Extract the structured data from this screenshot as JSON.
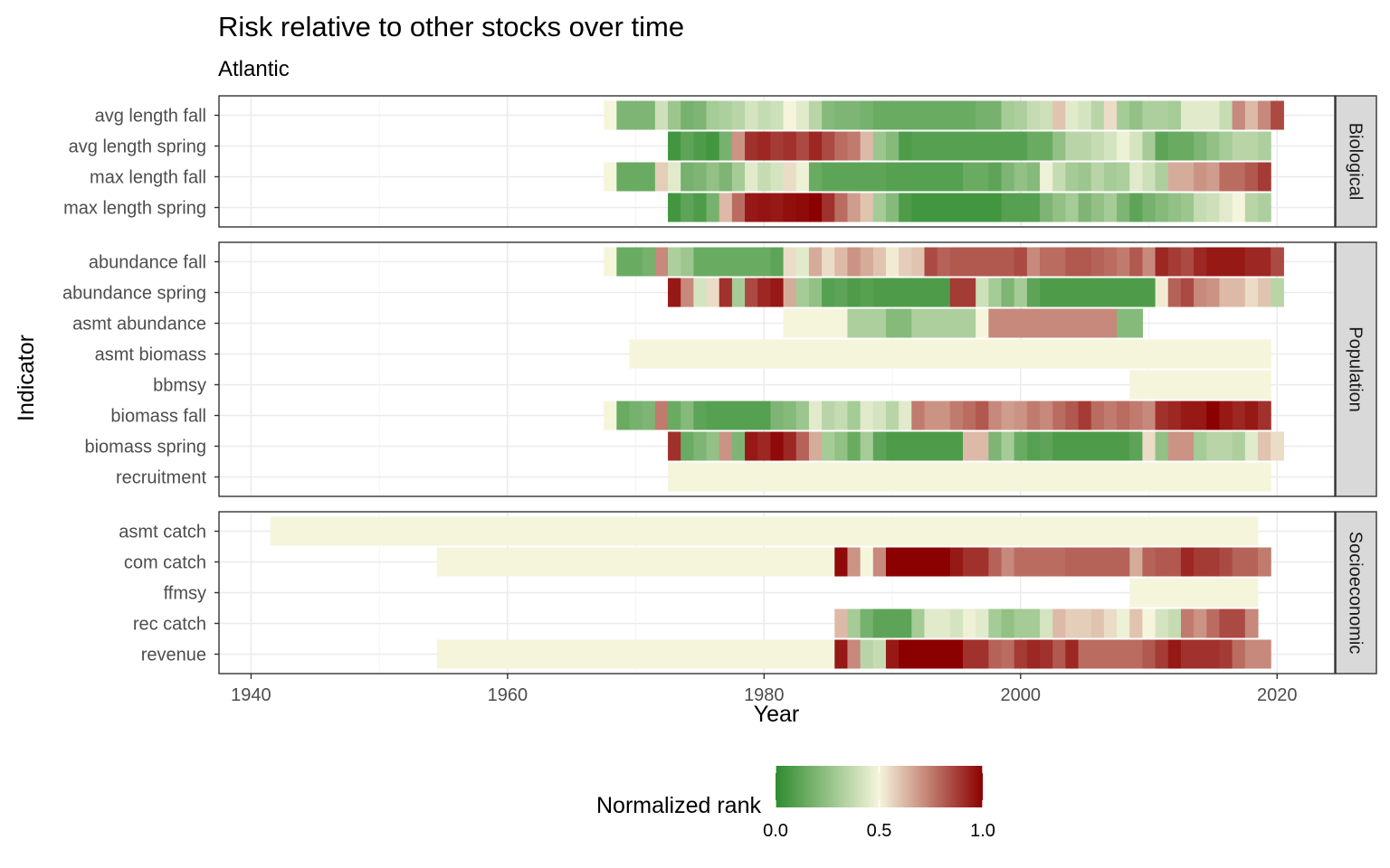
{
  "chart_data": {
    "type": "heatmap",
    "title": "Risk relative to other stocks over time",
    "subtitle": "Atlantic",
    "xlabel": "Year",
    "ylabel": "Indicator",
    "xlim": [
      1937.5,
      2024.5
    ],
    "x_ticks": [
      1940,
      1960,
      1980,
      2000,
      2020
    ],
    "grid": true,
    "legend": {
      "title": "Normalized rank",
      "position": "bottom",
      "ticks": [
        {
          "value": 0,
          "label": "0.0"
        },
        {
          "value": 0.5,
          "label": "0.5"
        },
        {
          "value": 1,
          "label": "1.0"
        }
      ],
      "colors": {
        "low": "#2e8b2e",
        "mid": "#f5f5dc",
        "high": "#8b0000"
      }
    },
    "panels": [
      {
        "name": "Biological",
        "rows": [
          {
            "label": "max length spring",
            "start": 1973,
            "values": [
              0.05,
              0.12,
              0.08,
              0.18,
              0.62,
              0.78,
              0.95,
              0.96,
              0.95,
              0.97,
              0.98,
              1.0,
              0.9,
              0.78,
              0.68,
              0.6,
              0.3,
              0.22,
              0.08,
              0.05,
              0.05,
              0.05,
              0.05,
              0.05,
              0.05,
              0.05,
              0.1,
              0.1,
              0.1,
              0.2,
              0.25,
              0.3,
              0.2,
              0.25,
              0.3,
              0.2,
              0.12,
              0.18,
              0.22,
              0.25,
              0.28,
              0.38,
              0.4,
              0.45,
              0.5,
              0.35,
              0.32
            ]
          },
          {
            "label": "max length fall",
            "start": 1968,
            "values": [
              0.5,
              0.15,
              0.15,
              0.15,
              0.58,
              0.45,
              0.18,
              0.2,
              0.25,
              0.2,
              0.3,
              0.45,
              0.38,
              0.42,
              0.55,
              0.48,
              0.15,
              0.12,
              0.12,
              0.12,
              0.12,
              0.12,
              0.1,
              0.1,
              0.1,
              0.1,
              0.1,
              0.1,
              0.15,
              0.15,
              0.12,
              0.2,
              0.25,
              0.22,
              0.48,
              0.38,
              0.3,
              0.28,
              0.35,
              0.3,
              0.32,
              0.45,
              0.4,
              0.32,
              0.65,
              0.65,
              0.7,
              0.68,
              0.78,
              0.78,
              0.82,
              0.88
            ]
          },
          {
            "label": "avg length spring",
            "start": 1973,
            "values": [
              0.05,
              0.12,
              0.08,
              0.05,
              0.18,
              0.7,
              0.9,
              0.92,
              0.88,
              0.9,
              0.85,
              0.92,
              0.85,
              0.78,
              0.75,
              0.62,
              0.28,
              0.22,
              0.08,
              0.1,
              0.1,
              0.1,
              0.1,
              0.1,
              0.1,
              0.1,
              0.1,
              0.1,
              0.15,
              0.15,
              0.25,
              0.35,
              0.35,
              0.38,
              0.42,
              0.48,
              0.42,
              0.3,
              0.12,
              0.15,
              0.15,
              0.2,
              0.25,
              0.3,
              0.35,
              0.35,
              0.32
            ]
          },
          {
            "label": "avg length fall",
            "start": 1968,
            "values": [
              0.5,
              0.2,
              0.2,
              0.2,
              0.4,
              0.28,
              0.18,
              0.2,
              0.3,
              0.32,
              0.35,
              0.42,
              0.38,
              0.4,
              0.5,
              0.45,
              0.35,
              0.22,
              0.2,
              0.2,
              0.18,
              0.15,
              0.15,
              0.15,
              0.15,
              0.15,
              0.15,
              0.15,
              0.15,
              0.18,
              0.18,
              0.3,
              0.32,
              0.38,
              0.4,
              0.6,
              0.45,
              0.42,
              0.35,
              0.55,
              0.3,
              0.25,
              0.32,
              0.32,
              0.3,
              0.45,
              0.45,
              0.45,
              0.38,
              0.72,
              0.62,
              0.72,
              0.85
            ]
          }
        ]
      },
      {
        "name": "Population",
        "rows": [
          {
            "label": "recruitment",
            "start": 1973,
            "end": 2019,
            "fill": 0.5
          },
          {
            "label": "biomass spring",
            "start": 1973,
            "values": [
              0.9,
              0.15,
              0.2,
              0.25,
              0.7,
              0.2,
              0.95,
              0.92,
              0.98,
              0.92,
              0.8,
              0.65,
              0.3,
              0.25,
              0.15,
              0.3,
              0.12,
              0.08,
              0.08,
              0.08,
              0.08,
              0.08,
              0.08,
              0.62,
              0.62,
              0.2,
              0.3,
              0.15,
              0.1,
              0.12,
              0.08,
              0.08,
              0.08,
              0.08,
              0.08,
              0.08,
              0.12,
              0.55,
              0.25,
              0.7,
              0.7,
              0.3,
              0.35,
              0.35,
              0.32,
              0.45,
              0.6,
              0.55
            ]
          },
          {
            "label": "biomass fall",
            "start": 1968,
            "values": [
              0.5,
              0.15,
              0.18,
              0.2,
              0.75,
              0.15,
              0.22,
              0.12,
              0.1,
              0.1,
              0.1,
              0.1,
              0.1,
              0.2,
              0.22,
              0.28,
              0.45,
              0.35,
              0.38,
              0.3,
              0.45,
              0.42,
              0.35,
              0.45,
              0.75,
              0.7,
              0.7,
              0.75,
              0.78,
              0.82,
              0.72,
              0.68,
              0.7,
              0.75,
              0.72,
              0.78,
              0.82,
              0.88,
              0.78,
              0.75,
              0.78,
              0.75,
              0.72,
              0.9,
              0.92,
              0.95,
              0.95,
              1.0,
              0.95,
              0.92,
              0.95,
              0.9
            ]
          },
          {
            "label": "bbmsy",
            "start": 2009,
            "end": 2019,
            "fill": 0.5
          },
          {
            "label": "asmt biomass",
            "start": 1970,
            "end": 2019,
            "fill": 0.5
          },
          {
            "label": "asmt abundance",
            "segments": [
              {
                "start": 1982,
                "end": 1986,
                "value": 0.5
              },
              {
                "start": 1987,
                "end": 1989,
                "value": 0.32
              },
              {
                "start": 1990,
                "end": 1991,
                "value": 0.22
              },
              {
                "start": 1992,
                "end": 1996,
                "value": 0.32
              },
              {
                "start": 1997,
                "end": 1997,
                "value": 0.5
              },
              {
                "start": 1998,
                "end": 2007,
                "value": 0.72
              },
              {
                "start": 2008,
                "end": 2009,
                "value": 0.22
              }
            ]
          },
          {
            "label": "abundance spring",
            "start": 1973,
            "values": [
              0.95,
              0.72,
              0.42,
              0.55,
              0.9,
              0.3,
              0.85,
              0.92,
              0.95,
              0.65,
              0.3,
              0.25,
              0.1,
              0.12,
              0.08,
              0.1,
              0.08,
              0.08,
              0.08,
              0.08,
              0.08,
              0.08,
              0.88,
              0.88,
              0.4,
              0.3,
              0.2,
              0.3,
              0.12,
              0.08,
              0.08,
              0.08,
              0.08,
              0.08,
              0.08,
              0.08,
              0.08,
              0.08,
              0.52,
              0.8,
              0.85,
              0.72,
              0.7,
              0.62,
              0.62,
              0.55,
              0.6,
              0.35
            ]
          },
          {
            "label": "abundance fall",
            "start": 1968,
            "values": [
              0.5,
              0.15,
              0.15,
              0.18,
              0.72,
              0.32,
              0.28,
              0.15,
              0.15,
              0.15,
              0.15,
              0.15,
              0.15,
              0.12,
              0.55,
              0.45,
              0.65,
              0.55,
              0.62,
              0.7,
              0.65,
              0.6,
              0.52,
              0.58,
              0.6,
              0.85,
              0.8,
              0.82,
              0.82,
              0.82,
              0.82,
              0.82,
              0.85,
              0.72,
              0.78,
              0.78,
              0.82,
              0.82,
              0.8,
              0.78,
              0.75,
              0.82,
              0.72,
              0.92,
              0.88,
              0.85,
              0.92,
              0.95,
              0.95,
              0.95,
              0.92,
              0.92,
              0.85
            ]
          }
        ]
      },
      {
        "name": "Socioeconomic",
        "rows": [
          {
            "label": "revenue",
            "start": 1955,
            "values": [
              0.5,
              0.5,
              0.5,
              0.5,
              0.5,
              0.5,
              0.5,
              0.5,
              0.5,
              0.5,
              0.5,
              0.5,
              0.5,
              0.5,
              0.5,
              0.5,
              0.5,
              0.5,
              0.5,
              0.5,
              0.5,
              0.5,
              0.5,
              0.5,
              0.5,
              0.5,
              0.5,
              0.5,
              0.5,
              0.5,
              0.5,
              0.95,
              0.72,
              0.35,
              0.38,
              0.95,
              1.0,
              1.0,
              1.0,
              1.0,
              1.0,
              0.9,
              0.9,
              0.8,
              0.78,
              0.88,
              0.92,
              0.9,
              0.82,
              0.92,
              0.78,
              0.78,
              0.78,
              0.78,
              0.78,
              0.82,
              0.88,
              0.95,
              0.9,
              0.9,
              0.9,
              0.88,
              0.78,
              0.72,
              0.72
            ]
          },
          {
            "label": "rec catch",
            "start": 1986,
            "values": [
              0.62,
              0.3,
              0.18,
              0.12,
              0.12,
              0.12,
              0.3,
              0.45,
              0.45,
              0.42,
              0.48,
              0.45,
              0.3,
              0.25,
              0.3,
              0.3,
              0.42,
              0.62,
              0.58,
              0.58,
              0.6,
              0.55,
              0.48,
              0.6,
              0.5,
              0.42,
              0.38,
              0.75,
              0.7,
              0.78,
              0.85,
              0.85,
              0.72
            ]
          },
          {
            "label": "ffmsy",
            "start": 2009,
            "end": 2018,
            "fill": 0.5
          },
          {
            "label": "com catch",
            "start": 1955,
            "values": [
              0.5,
              0.5,
              0.5,
              0.5,
              0.5,
              0.5,
              0.5,
              0.5,
              0.5,
              0.5,
              0.5,
              0.5,
              0.5,
              0.5,
              0.5,
              0.5,
              0.5,
              0.5,
              0.5,
              0.5,
              0.5,
              0.5,
              0.5,
              0.5,
              0.5,
              0.5,
              0.5,
              0.5,
              0.5,
              0.5,
              0.5,
              0.98,
              0.7,
              0.5,
              0.72,
              1.0,
              1.0,
              1.0,
              1.0,
              1.0,
              0.95,
              0.9,
              0.9,
              0.8,
              0.72,
              0.78,
              0.78,
              0.78,
              0.78,
              0.8,
              0.8,
              0.8,
              0.8,
              0.8,
              0.65,
              0.8,
              0.82,
              0.82,
              0.92,
              0.88,
              0.88,
              0.85,
              0.8,
              0.8,
              0.75
            ]
          },
          {
            "label": "asmt catch",
            "start": 1942,
            "end": 2018,
            "fill": 0.5
          }
        ]
      }
    ]
  }
}
